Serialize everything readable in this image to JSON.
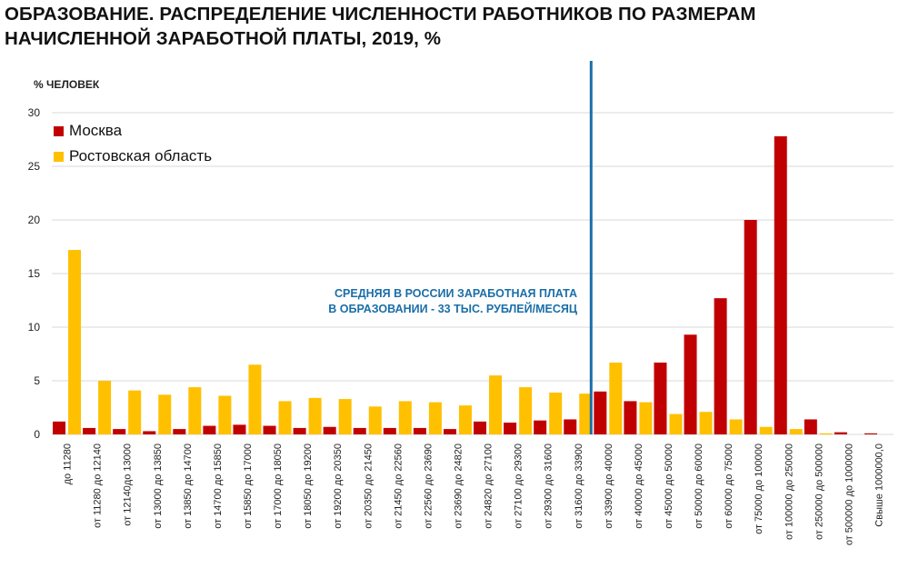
{
  "title": {
    "line1": "ОБРАЗОВАНИЕ. РАСПРЕДЕЛЕНИЕ ЧИСЛЕННОСТИ РАБОТНИКОВ ПО РАЗМЕРАМ",
    "line2": "НАЧИСЛЕННОЙ ЗАРАБОТНОЙ ПЛАТЫ, 2019, %"
  },
  "annotation": {
    "line1": "СРЕДНЯЯ В РОССИИ ЗАРАБОТНАЯ ПЛАТА",
    "line2": "В ОБРАЗОВАНИИ - 33 ТЫС. РУБЛЕЙ/МЕСЯЦ"
  },
  "colors": {
    "moscow": "#c00000",
    "rostov": "#ffc000",
    "reference_line": "#1a6ea8",
    "grid": "#d9d9d9"
  },
  "chart_data": {
    "type": "bar",
    "ylabel": "% ЧЕЛОВЕК",
    "ylim": [
      0,
      30
    ],
    "yticks": [
      0,
      5,
      10,
      15,
      20,
      25,
      30
    ],
    "grid": true,
    "legend_position": "top-left",
    "reference_line": {
      "after_category": "от 31600 до 33900",
      "label": "СРЕДНЯЯ В РОССИИ ЗАРАБОТНАЯ ПЛАТА В ОБРАЗОВАНИИ - 33 ТЫС. РУБЛЕЙ/МЕСЯЦ"
    },
    "categories": [
      "до  11280",
      "от 11280 до 12140",
      "от 12140до 13000",
      "от 13000 до 13850",
      "от 13850 до 14700",
      "от 14700 до 15850",
      "от 15850 до 17000",
      "от 17000  до 18050",
      "от 18050 до 19200",
      "от 19200 до 20350",
      "от 20350 до 21450",
      "от 21450 до 22560",
      "от 22560 до 23690",
      "от 23690 до 24820",
      "от 24820 до 27100",
      "от 27100 до 29300",
      "от 29300 до 31600",
      "от 31600 до 33900",
      "от 33900 до 40000",
      "от 40000 до 45000",
      "от 45000 до 50000",
      "от 50000 до 60000",
      "от 60000 до 75000",
      "от 75000 до 100000",
      "от 100000 до 250000",
      "от 250000 до 500000",
      "от 500000 до 1000000",
      "Свыше 1000000,0"
    ],
    "series": [
      {
        "name": "Москва",
        "values": [
          1.2,
          0.6,
          0.5,
          0.3,
          0.5,
          0.8,
          0.9,
          0.8,
          0.6,
          0.7,
          0.6,
          0.6,
          0.6,
          0.5,
          1.2,
          1.1,
          1.3,
          1.4,
          4.0,
          3.1,
          6.7,
          9.3,
          12.7,
          20.0,
          27.8,
          1.4,
          0.2,
          0.1
        ]
      },
      {
        "name": "Ростовская область",
        "values": [
          17.2,
          5.0,
          4.1,
          3.7,
          4.4,
          3.6,
          6.5,
          3.1,
          3.4,
          3.3,
          2.6,
          3.1,
          3.0,
          2.7,
          5.5,
          4.4,
          3.9,
          3.8,
          6.7,
          3.0,
          1.9,
          2.1,
          1.4,
          0.7,
          0.5,
          0.1,
          0.0,
          0.0
        ]
      }
    ]
  }
}
